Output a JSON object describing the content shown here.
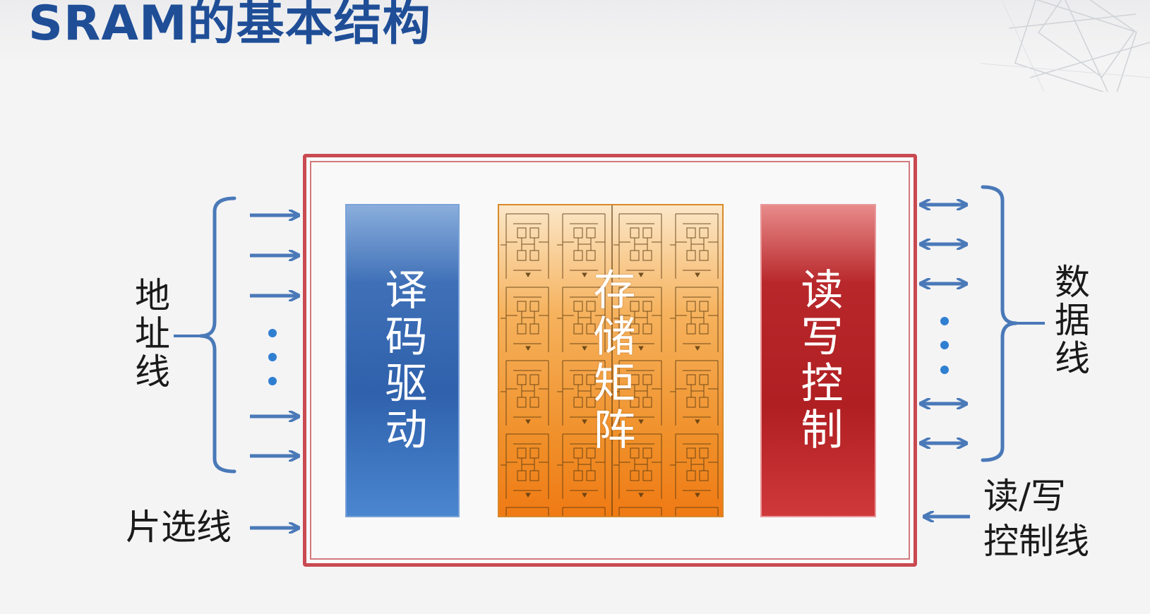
{
  "slide": {
    "title": "SRAM的基本结构"
  },
  "blocks": {
    "decoder": "译码驱动",
    "array": "存储矩阵",
    "rw_control": "读写控制"
  },
  "labels": {
    "address_lines": "地址线",
    "chip_select": "片选线",
    "data_lines": "数据线",
    "rw_line_1": "读/写",
    "rw_line_2": "控制线"
  },
  "colors": {
    "title": "#1f4e97",
    "arrows": "#4a79b8",
    "frame": "#c94a50"
  }
}
